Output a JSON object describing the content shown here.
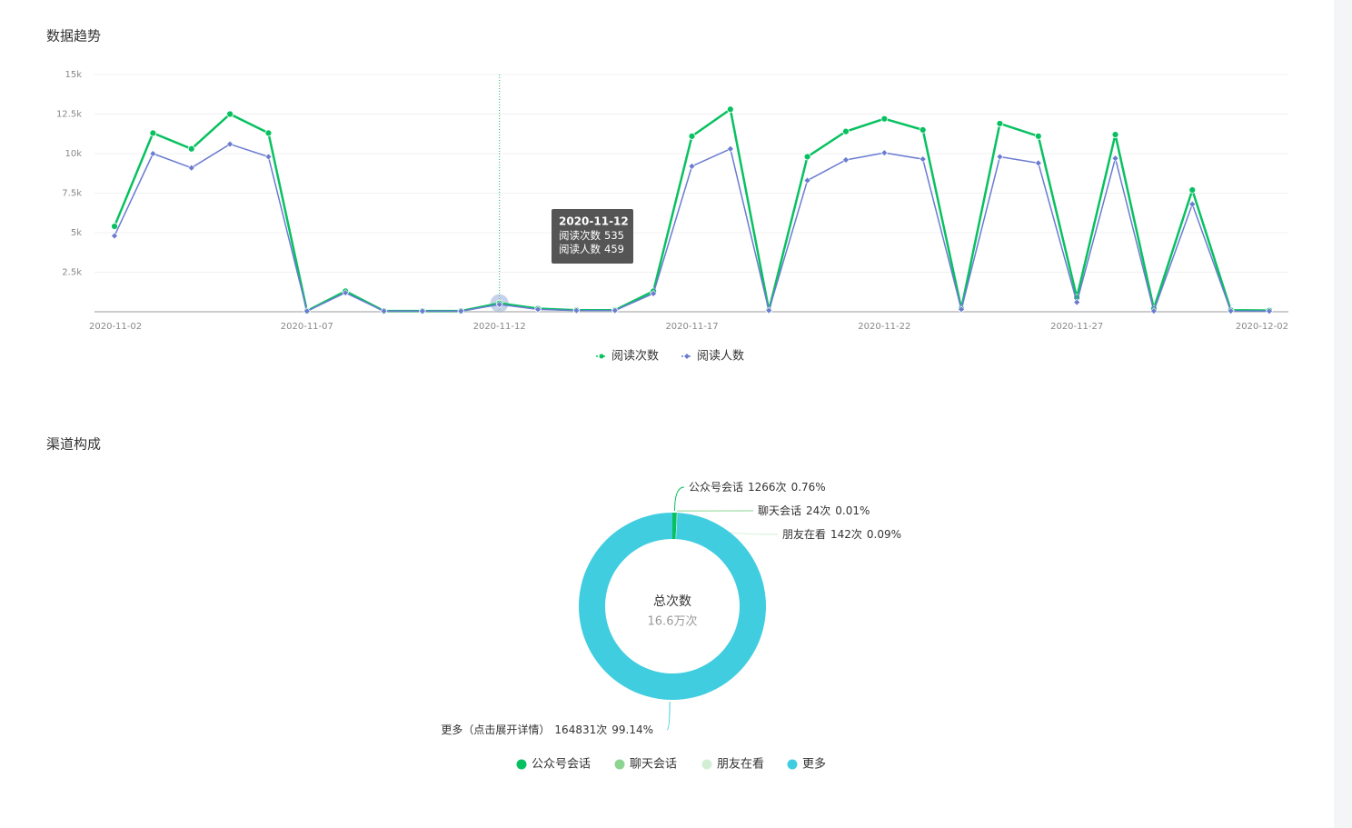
{
  "chart_data": [
    {
      "type": "line",
      "title": "数据趋势",
      "categories": [
        "2020-11-02",
        null,
        null,
        null,
        null,
        "2020-11-07",
        null,
        null,
        null,
        null,
        "2020-11-12",
        null,
        null,
        null,
        null,
        "2020-11-17",
        null,
        null,
        null,
        null,
        "2020-11-22",
        null,
        null,
        null,
        null,
        "2020-11-27",
        null,
        null,
        null,
        null,
        "2020-12-02"
      ],
      "series": [
        {
          "name": "阅读次数",
          "color": "#07c160",
          "values": [
            5400,
            11300,
            10300,
            12500,
            11300,
            50,
            1300,
            50,
            50,
            50,
            535,
            200,
            100,
            100,
            1300,
            11100,
            12800,
            100,
            9800,
            11400,
            12200,
            11500,
            200,
            11900,
            11100,
            900,
            11200,
            200,
            7700,
            100,
            80
          ]
        },
        {
          "name": "阅读人数",
          "color": "#6a7bd1",
          "values": [
            4800,
            10000,
            9100,
            10600,
            9800,
            40,
            1200,
            40,
            40,
            40,
            459,
            150,
            80,
            80,
            1150,
            9200,
            10300,
            80,
            8300,
            9600,
            10050,
            9650,
            150,
            9800,
            9400,
            600,
            9700,
            50,
            6800,
            50,
            40
          ]
        }
      ],
      "ylim": [
        0,
        15000
      ],
      "yticks": [
        {
          "value": 2500,
          "label": "2.5k"
        },
        {
          "value": 5000,
          "label": "5k"
        },
        {
          "value": 7500,
          "label": "7.5k"
        },
        {
          "value": 10000,
          "label": "10k"
        },
        {
          "value": 12500,
          "label": "12.5k"
        },
        {
          "value": 15000,
          "label": "15k"
        }
      ],
      "grid": true,
      "legend": "bottom",
      "highlight_index": 10
    },
    {
      "type": "donut",
      "title": "渠道构成",
      "center_label": "总次数",
      "center_value": "16.6万次",
      "categories": [
        "公众号会话",
        "聊天会话",
        "朋友在看",
        "更多"
      ],
      "slice_labels": [
        "公众号会话",
        "聊天会话",
        "朋友在看",
        "更多（点击展开详情）"
      ],
      "values": [
        1266,
        24,
        142,
        164831
      ],
      "value_labels": [
        "1266次",
        "24次",
        "142次",
        "164831次"
      ],
      "percents": [
        0.76,
        0.01,
        0.09,
        99.14
      ],
      "percent_labels": [
        "0.76%",
        "0.01%",
        "0.09%",
        "99.14%"
      ],
      "colors": [
        "#07c160",
        "#8cd48f",
        "#d2efd6",
        "#40cde0"
      ],
      "legend": "bottom"
    }
  ]
}
